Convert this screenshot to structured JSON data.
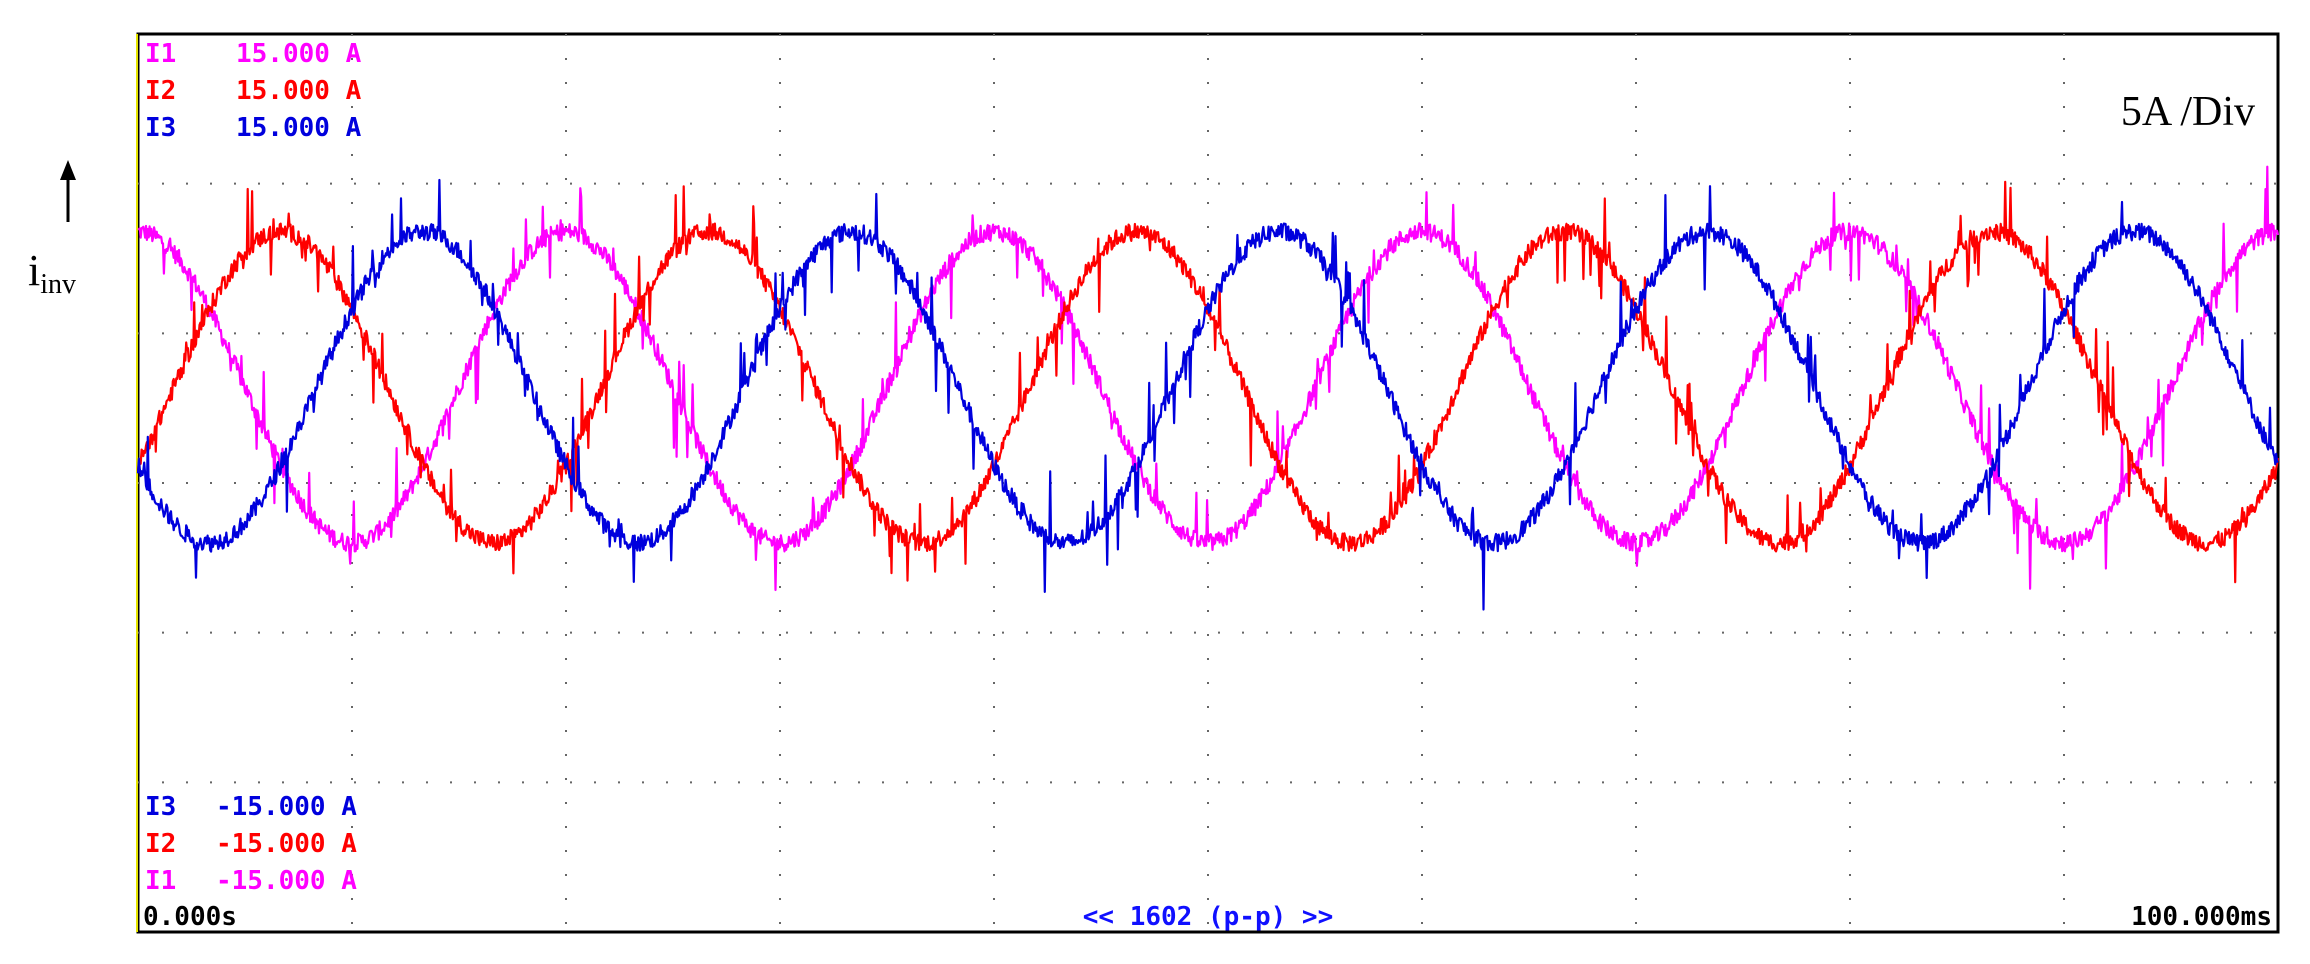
{
  "chart_data": {
    "type": "line",
    "title": "",
    "scale_label": "5A /Div",
    "ylabel_main": "i",
    "ylabel_sub": "inv",
    "xlim": [
      0,
      100
    ],
    "x_unit": "ms",
    "ylim": [
      -15,
      15
    ],
    "y_unit": "A",
    "grid": true,
    "x_divisions": 10,
    "y_divisions": 6,
    "x_start_label": "0.000s",
    "x_end_label": "100.000ms",
    "record_length_label": "<< 1602 (p-p) >>",
    "top_labels": [
      {
        "name": "I1",
        "value": "15.000 A"
      },
      {
        "name": "I2",
        "value": "15.000 A"
      },
      {
        "name": "I3",
        "value": "15.000 A"
      }
    ],
    "bottom_labels": [
      {
        "name": "I3",
        "value": "-15.000 A"
      },
      {
        "name": "I2",
        "value": "-15.000 A"
      },
      {
        "name": "I1",
        "value": "-15.000 A"
      }
    ],
    "series": [
      {
        "name": "I1",
        "color": "#ff00ff",
        "amplitude_A": 5.2,
        "frequency_Hz": 50,
        "phase_deg": 90,
        "offset_A": 3.2
      },
      {
        "name": "I2",
        "color": "#ff0000",
        "amplitude_A": 5.2,
        "frequency_Hz": 50,
        "phase_deg": -30,
        "offset_A": 3.2
      },
      {
        "name": "I3",
        "color": "#0000dd",
        "amplitude_A": 5.2,
        "frequency_Hz": 50,
        "phase_deg": 210,
        "offset_A": 3.2
      }
    ],
    "switching_ripple_A": 0.6,
    "spike_amplitude_A": 2.0
  },
  "colors": {
    "I1": "#ff00ff",
    "I2": "#ff0000",
    "I3": "#0000dd",
    "frame": "#000000",
    "grid": "#666666",
    "footer": "#1010ff"
  }
}
